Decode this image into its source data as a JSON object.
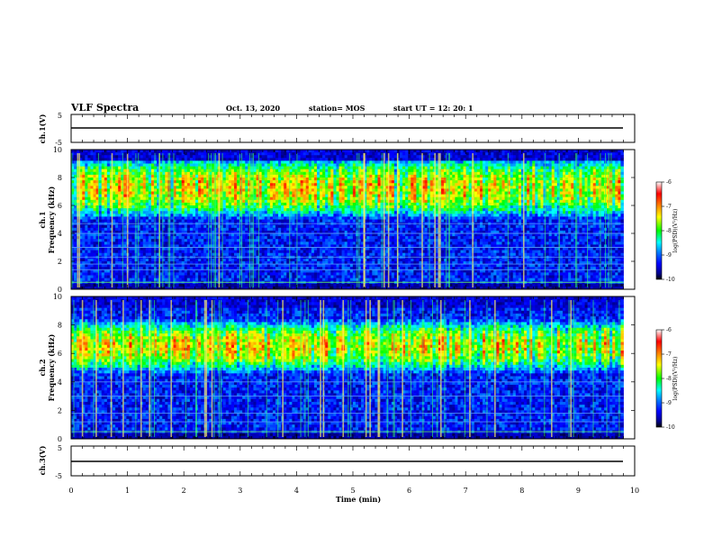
{
  "header": {
    "title": "VLF Spectra",
    "date": "Oct. 13, 2020",
    "station": "station= MOS",
    "start_ut": "start UT =   12: 20: 1"
  },
  "colors": {
    "background": "#ffffff",
    "axes": "#000000",
    "colormap": [
      "#000000",
      "#00008b",
      "#0000ff",
      "#0080ff",
      "#00ffff",
      "#00ff00",
      "#ffff00",
      "#ff8000",
      "#ff0000",
      "#ffffff"
    ]
  },
  "chart_data": [
    {
      "type": "line",
      "panel": "ch1-waveform",
      "ylabel": "ch.1(V)",
      "ylim": [
        -5,
        5
      ],
      "yticks": [
        "5",
        "-5"
      ],
      "xlim": [
        0,
        10
      ],
      "series": [
        {
          "x": [
            0,
            9.8
          ],
          "y": [
            0,
            0
          ]
        }
      ]
    },
    {
      "type": "heatmap",
      "panel": "ch1-spectrogram",
      "ylabel": "ch.1\nFrequency (kHz)",
      "ylim": [
        0,
        10
      ],
      "yticks": [
        "0",
        "2",
        "4",
        "6",
        "8",
        "10"
      ],
      "xlim": [
        0,
        10
      ],
      "data_end_min": 9.8,
      "colorbar": {
        "label": "log(PSD)(V²/Hz)",
        "range": [
          -10,
          -6
        ],
        "ticks": [
          "-6",
          "-7",
          "-8",
          "-9",
          "-10"
        ]
      },
      "intense_band_khz": [
        5.5,
        9.0
      ],
      "horizontal_lines_khz": [
        0.5,
        1.4,
        1.8,
        2.3,
        3.0,
        4.0,
        4.7
      ]
    },
    {
      "type": "heatmap",
      "panel": "ch2-spectrogram",
      "ylabel": "ch.2\nFrequency (kHz)",
      "ylim": [
        0,
        10
      ],
      "yticks": [
        "0",
        "2",
        "4",
        "6",
        "8",
        "10"
      ],
      "xlim": [
        0,
        10
      ],
      "data_end_min": 9.8,
      "colorbar": {
        "label": "log(PSD)(V²/Hz)",
        "range": [
          -10,
          -6
        ],
        "ticks": [
          "-6",
          "-7",
          "-8",
          "-9",
          "-10"
        ]
      },
      "intense_band_khz": [
        5.0,
        8.0
      ],
      "horizontal_lines_khz": [
        0.5,
        1.2,
        1.8,
        3.0,
        4.0
      ]
    },
    {
      "type": "line",
      "panel": "ch3-waveform",
      "ylabel": "ch.3(V)",
      "ylim": [
        -5,
        5
      ],
      "yticks": [
        "5",
        "-5"
      ],
      "xlim": [
        0,
        10
      ],
      "xlabel": "Time (min)",
      "xticks": [
        "0",
        "1",
        "2",
        "3",
        "4",
        "5",
        "6",
        "7",
        "8",
        "9",
        "10"
      ],
      "series": [
        {
          "x": [
            0,
            9.8
          ],
          "y": [
            0,
            0
          ]
        }
      ]
    }
  ]
}
